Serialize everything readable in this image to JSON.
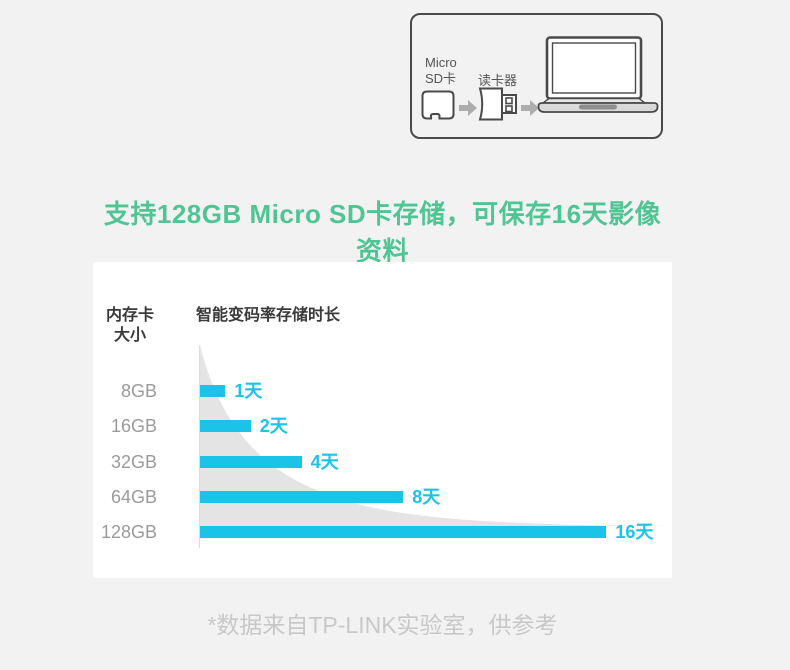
{
  "illustration": {
    "sd_label": "Micro\nSD卡",
    "reader_label": "读卡器"
  },
  "headline": "支持128GB Micro SD卡存储，可保存16天影像资料",
  "chart_data": {
    "type": "bar",
    "orientation": "horizontal",
    "title": "智能变码率存储时长",
    "category_axis_title": "内存卡\n大小",
    "categories": [
      "8GB",
      "16GB",
      "32GB",
      "64GB",
      "128GB"
    ],
    "values": [
      1,
      2,
      4,
      8,
      16
    ],
    "unit": "天",
    "value_labels": [
      "1天",
      "2天",
      "4天",
      "8天",
      "16天"
    ],
    "xlim": [
      0,
      18
    ],
    "grid": false,
    "legend": false,
    "background_shape": "exponential-decay-area",
    "bar_color": "#1BC3E9",
    "curve_fill_color": "#E4E4E4"
  },
  "footnote": "*数据来自TP-LINK实验室，供参考",
  "colors": {
    "page_bg": "#F2F2F3",
    "panel_bg": "#FFFFFF",
    "headline": "#4FC593",
    "dark_text": "#3A3A3A",
    "category_text": "#9B9B9B",
    "footnote_text": "#C8C8C8",
    "icon_stroke": "#4A4A4A",
    "arrow_gray": "#ADADAD",
    "axis_line": "#DBDBDB"
  }
}
